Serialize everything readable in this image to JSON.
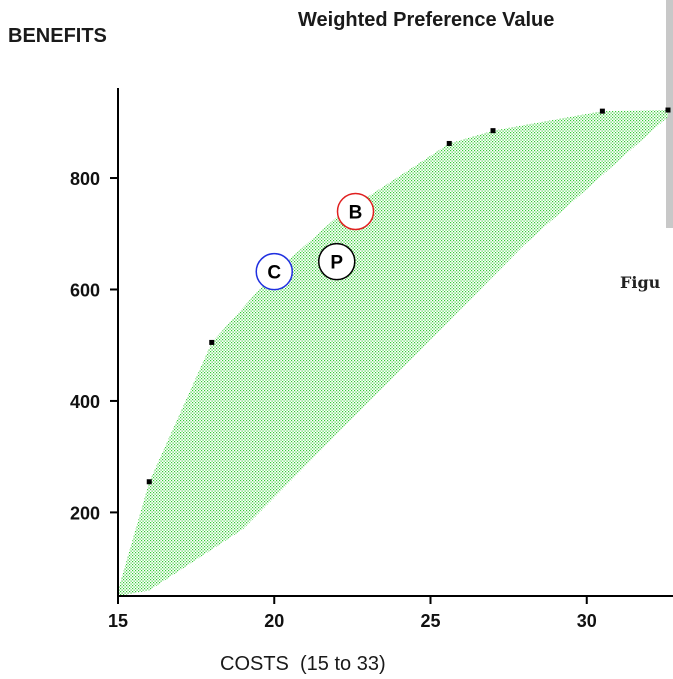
{
  "chart_data": {
    "type": "scatter",
    "title": "Weighted Preference Value",
    "ylabel": "BENEFITS",
    "xlabel": "COSTS  (15 to 33)",
    "xlim": [
      15,
      32.6
    ],
    "ylim": [
      50,
      940
    ],
    "x_ticks": [
      15,
      20,
      25,
      30
    ],
    "y_ticks": [
      200,
      400,
      600,
      800
    ],
    "grid": false,
    "region_color": "#33cc33",
    "region_upper": [
      [
        15,
        60
      ],
      [
        16,
        255
      ],
      [
        18,
        505
      ],
      [
        20,
        630
      ],
      [
        22,
        730
      ],
      [
        25.6,
        862
      ],
      [
        27,
        885
      ],
      [
        30.5,
        920
      ],
      [
        32.6,
        922
      ]
    ],
    "region_lower": [
      [
        32.6,
        910
      ],
      [
        28,
        680
      ],
      [
        25,
        510
      ],
      [
        22,
        340
      ],
      [
        19,
        170
      ],
      [
        16,
        60
      ],
      [
        15,
        50
      ]
    ],
    "frontier_points": [
      {
        "x": 16,
        "y": 255
      },
      {
        "x": 18,
        "y": 505
      },
      {
        "x": 25.6,
        "y": 862
      },
      {
        "x": 27,
        "y": 885
      },
      {
        "x": 30.5,
        "y": 920
      },
      {
        "x": 32.6,
        "y": 922
      }
    ],
    "markers": [
      {
        "label": "B",
        "x": 22.6,
        "y": 740,
        "color": "#e02020"
      },
      {
        "label": "P",
        "x": 22.0,
        "y": 650,
        "color": "#000000"
      },
      {
        "label": "C",
        "x": 20.0,
        "y": 632,
        "color": "#2030e0"
      }
    ],
    "caption": "Figu"
  }
}
